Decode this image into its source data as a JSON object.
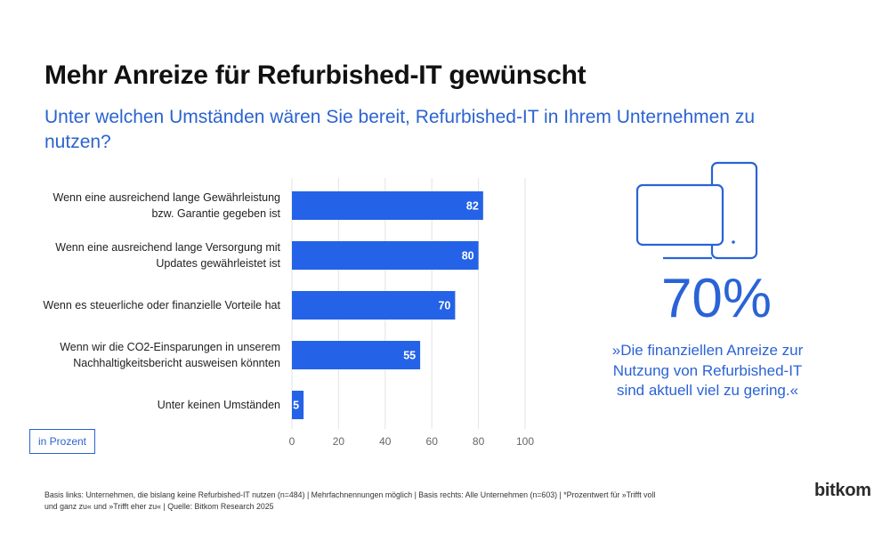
{
  "header": {
    "title": "Mehr Anreize für Refurbished-IT gewünscht",
    "subtitle": "Unter welchen Umständen wären Sie bereit, Refurbished-IT in Ihrem Unternehmen zu nutzen?"
  },
  "chart_data": {
    "type": "bar",
    "orientation": "horizontal",
    "categories": [
      "Wenn eine ausreichend lange Gewährleistung bzw. Garantie gegeben ist",
      "Wenn eine ausreichend lange Versorgung mit Updates gewährleistet ist",
      "Wenn es steuerliche oder finanzielle Vorteile hat",
      "Wenn wir die CO2-Einsparungen in unserem Nachhaltigkeitsbericht ausweisen könnten",
      "Unter keinen Umständen"
    ],
    "values": [
      82,
      80,
      70,
      55,
      5
    ],
    "color": "#2462e8",
    "xlim": [
      0,
      100
    ],
    "xticks": [
      0,
      20,
      40,
      60,
      80,
      100
    ],
    "grid": true,
    "unit_label": "in Prozent"
  },
  "callout": {
    "figure": "70%",
    "quote": "»Die finanziellen Anreize zur Nutzung von Refurbished-IT sind aktuell viel zu gering.«"
  },
  "footer": {
    "note": "Basis links: Unternehmen, die bislang keine Refurbished-IT nutzen (n=484) | Mehrfachnennungen möglich | Basis rechts: Alle Unternehmen (n=603) | *Prozentwert für »Trifft voll und ganz zu« und »Trifft eher zu« | Quelle: Bitkom Research 2025",
    "logo": "bitkom"
  }
}
